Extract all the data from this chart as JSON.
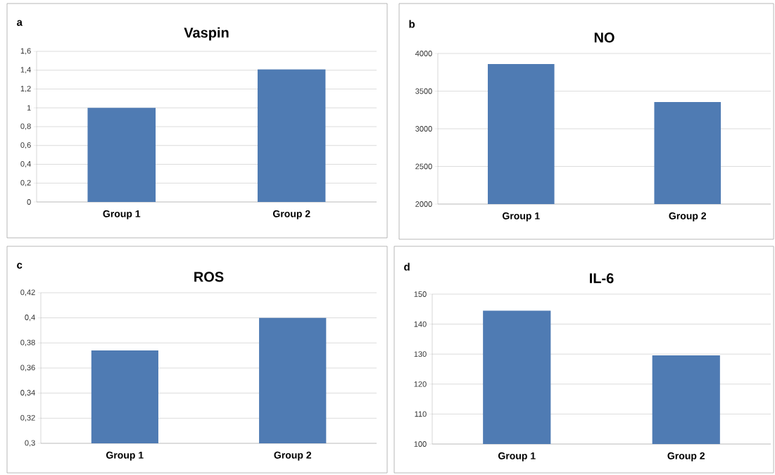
{
  "chart_data": [
    {
      "type": "bar",
      "title": "Vaspin",
      "annotations": [
        "a"
      ],
      "categories": [
        "Group 1",
        "Group 2"
      ],
      "values": [
        1.0,
        1.41
      ],
      "color": "#4f7bb3",
      "ylim": [
        0,
        1.6
      ],
      "yticks": [
        0,
        {
          "value": 0.2,
          "label": "0,2"
        },
        {
          "value": 0.4,
          "label": "0,4"
        },
        {
          "value": 0.6,
          "label": "0,6"
        },
        {
          "value": 0.8,
          "label": "0,8"
        },
        1,
        {
          "value": 1.2,
          "label": "1,2"
        },
        {
          "value": 1.4,
          "label": "1,4"
        },
        {
          "value": 1.6,
          "label": "1,6"
        }
      ],
      "grid": "y"
    },
    {
      "type": "bar",
      "title": "NO",
      "annotations": [
        "b"
      ],
      "categories": [
        "Group 1",
        "Group 2"
      ],
      "values": [
        3860,
        3355
      ],
      "color": "#4f7bb3",
      "ylim": [
        2000,
        4000
      ],
      "yticks": [
        2000,
        2500,
        3000,
        3500,
        4000
      ],
      "grid": "y"
    },
    {
      "type": "bar",
      "title": "ROS",
      "annotations": [
        "c"
      ],
      "categories": [
        "Group 1",
        "Group 2"
      ],
      "values": [
        0.374,
        0.4
      ],
      "color": "#4f7bb3",
      "ylim": [
        0.3,
        0.42
      ],
      "yticks": [
        {
          "value": 0.3,
          "label": "0,3"
        },
        {
          "value": 0.32,
          "label": "0,32"
        },
        {
          "value": 0.34,
          "label": "0,34"
        },
        {
          "value": 0.36,
          "label": "0,36"
        },
        {
          "value": 0.38,
          "label": "0,38"
        },
        {
          "value": 0.4,
          "label": "0,4"
        },
        {
          "value": 0.42,
          "label": "0,42"
        }
      ],
      "grid": "y"
    },
    {
      "type": "bar",
      "title": "IL-6",
      "annotations": [
        "d"
      ],
      "categories": [
        "Group 1",
        "Group 2"
      ],
      "values": [
        144.5,
        129.6
      ],
      "color": "#4f7bb3",
      "ylim": [
        100,
        150
      ],
      "yticks": [
        100,
        110,
        120,
        130,
        140,
        150
      ],
      "grid": "y"
    }
  ]
}
